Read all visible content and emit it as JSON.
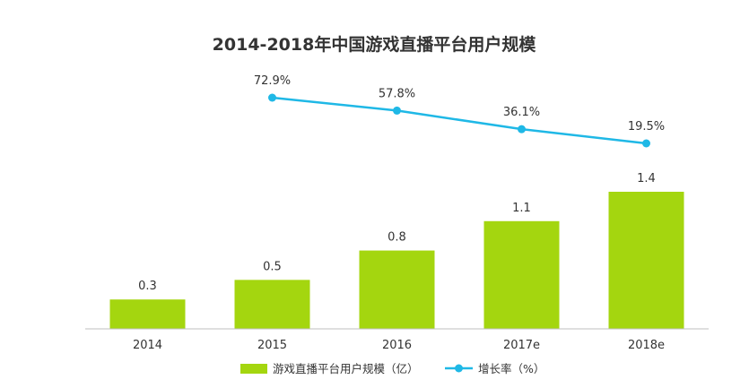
{
  "chart_data": {
    "type": "bar",
    "title": "2014-2018年中国游戏直播平台用户规模",
    "categories": [
      "2014",
      "2015",
      "2016",
      "2017e",
      "2018e"
    ],
    "series": [
      {
        "name": "游戏直播平台用户规模（亿）",
        "type": "bar",
        "values": [
          0.3,
          0.5,
          0.8,
          1.1,
          1.4
        ],
        "labels": [
          "0.3",
          "0.5",
          "0.8",
          "1.1",
          "1.4"
        ],
        "color": "#a4d60f"
      },
      {
        "name": "增长率（%）",
        "type": "line",
        "values": [
          null,
          72.9,
          57.8,
          36.1,
          19.5
        ],
        "labels": [
          "",
          "72.9%",
          "57.8%",
          "36.1%",
          "19.5%"
        ],
        "color": "#1fb8e6"
      }
    ],
    "ylim_bar": [
      0,
      1.4
    ],
    "ylim_line": [
      19.5,
      72.9
    ],
    "legend_position": "bottom",
    "grid": false
  }
}
